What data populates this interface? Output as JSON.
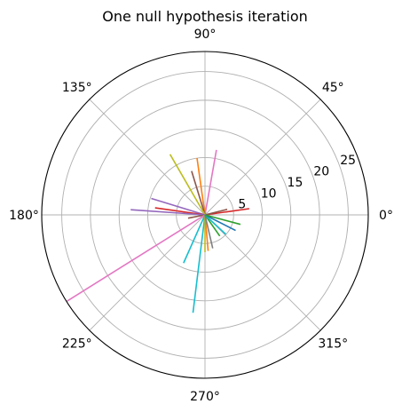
{
  "chart_data": {
    "type": "polar-lines",
    "title": "One null hypothesis iteration",
    "angle_ticks": [
      "0°",
      "45°",
      "90°",
      "135°",
      "180°",
      "225°",
      "270°",
      "315°"
    ],
    "angle_tick_degrees": [
      0,
      45,
      90,
      135,
      180,
      225,
      270,
      315
    ],
    "radial_ticks": [
      5,
      10,
      15,
      20,
      25
    ],
    "rlim": [
      0,
      28.5
    ],
    "grid": true,
    "series": [
      {
        "theta": 8,
        "r": 7.8,
        "color": "#d62728"
      },
      {
        "theta": 14,
        "r": 4.0,
        "color": "#8c564b"
      },
      {
        "theta": 80,
        "r": 11.5,
        "color": "#e377c2"
      },
      {
        "theta": 98,
        "r": 10.0,
        "color": "#ff7f0e"
      },
      {
        "theta": 107,
        "r": 8.0,
        "color": "#8c564b"
      },
      {
        "theta": 120,
        "r": 12.2,
        "color": "#bcbd22"
      },
      {
        "theta": 163,
        "r": 9.8,
        "color": "#9467bd"
      },
      {
        "theta": 172,
        "r": 8.8,
        "color": "#d62728"
      },
      {
        "theta": 176,
        "r": 13.0,
        "color": "#9467bd"
      },
      {
        "theta": 191,
        "r": 3.0,
        "color": "#8c564b"
      },
      {
        "theta": 212,
        "r": 28.4,
        "color": "#e377c2"
      },
      {
        "theta": 246,
        "r": 9.2,
        "color": "#17becf"
      },
      {
        "theta": 263,
        "r": 17.2,
        "color": "#17becf"
      },
      {
        "theta": 270,
        "r": 6.5,
        "color": "#bcbd22"
      },
      {
        "theta": 275,
        "r": 6.3,
        "color": "#ff7f0e"
      },
      {
        "theta": 283,
        "r": 6.0,
        "color": "#7f7f7f"
      },
      {
        "theta": 305,
        "r": 4.5,
        "color": "#2ca02c"
      },
      {
        "theta": 317,
        "r": 5.0,
        "color": "#17becf"
      },
      {
        "theta": 333,
        "r": 6.0,
        "color": "#1f77b4"
      },
      {
        "theta": 345,
        "r": 6.4,
        "color": "#2ca02c"
      }
    ]
  }
}
